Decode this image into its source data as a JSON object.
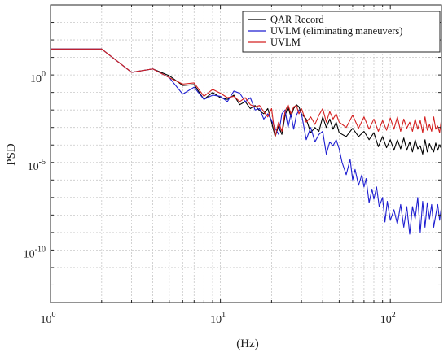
{
  "chart_data": {
    "type": "line",
    "xlabel": "(Hz)",
    "ylabel": "PSD",
    "xscale": "log",
    "yscale": "log",
    "xlim": [
      1,
      200
    ],
    "ylim": [
      1e-13,
      10000.0
    ],
    "grid": true,
    "legend_position": "top-right",
    "x_ticks": [
      {
        "value": 1,
        "base": "10",
        "exp": "0"
      },
      {
        "value": 10,
        "base": "10",
        "exp": "1"
      },
      {
        "value": 100,
        "base": "10",
        "exp": "2"
      }
    ],
    "y_ticks": [
      {
        "value": 1,
        "base": "10",
        "exp": "0"
      },
      {
        "value": 1e-05,
        "base": "10",
        "exp": "-5"
      },
      {
        "value": 1e-10,
        "base": "10",
        "exp": "-10"
      }
    ],
    "series": [
      {
        "name": "QAR Record",
        "color": "#000000",
        "x": [
          1,
          2,
          3,
          4,
          5,
          6,
          7,
          8,
          9,
          10,
          11,
          12,
          13,
          14,
          15,
          16,
          17,
          18,
          19,
          20,
          21,
          22,
          23,
          24,
          25,
          26,
          27,
          28,
          29,
          30,
          32,
          34,
          36,
          38,
          40,
          42,
          44,
          46,
          48,
          50,
          55,
          60,
          65,
          70,
          75,
          80,
          85,
          90,
          95,
          100,
          105,
          110,
          115,
          120,
          125,
          130,
          135,
          140,
          145,
          150,
          155,
          160,
          165,
          170,
          175,
          180,
          185,
          190,
          195,
          200
        ],
        "y": [
          30,
          30,
          1.4,
          2.2,
          0.9,
          0.25,
          0.28,
          0.04,
          0.1,
          0.05,
          0.04,
          0.07,
          0.02,
          0.03,
          0.012,
          0.018,
          0.009,
          0.006,
          0.012,
          0.002,
          0.0003,
          0.0012,
          0.0004,
          0.0045,
          0.015,
          0.004,
          0.012,
          0.02,
          0.015,
          0.006,
          0.003,
          0.0005,
          0.001,
          0.0006,
          0.004,
          0.001,
          0.003,
          0.0008,
          0.002,
          0.0005,
          0.0003,
          0.0009,
          0.0003,
          0.0006,
          0.0002,
          0.0005,
          8e-05,
          0.0003,
          7e-05,
          0.0002,
          5e-05,
          0.0002,
          6e-05,
          0.00025,
          5e-05,
          0.00015,
          4e-05,
          0.0002,
          6e-05,
          9e-05,
          3e-05,
          0.0002,
          4e-05,
          0.00012,
          6e-05,
          4e-05,
          0.00013,
          5e-05,
          0.0001,
          6e-05
        ]
      },
      {
        "name": "UVLM (eliminating maneuvers)",
        "color": "#1f1fd1",
        "x": [
          1,
          2,
          3,
          4,
          5,
          6,
          7,
          8,
          9,
          10,
          11,
          12,
          13,
          14,
          15,
          16,
          17,
          18,
          19,
          20,
          21,
          22,
          23,
          24,
          25,
          26,
          27,
          28,
          29,
          30,
          32,
          34,
          36,
          38,
          40,
          42,
          44,
          46,
          48,
          50,
          52,
          55,
          58,
          60,
          62,
          65,
          68,
          70,
          72,
          75,
          78,
          80,
          83,
          86,
          90,
          93,
          96,
          100,
          105,
          110,
          115,
          120,
          125,
          130,
          135,
          140,
          145,
          150,
          155,
          160,
          165,
          170,
          175,
          180,
          185,
          190,
          195,
          200
        ],
        "y": [
          30,
          30,
          1.4,
          2.2,
          0.7,
          0.08,
          0.2,
          0.04,
          0.07,
          0.06,
          0.03,
          0.12,
          0.09,
          0.03,
          0.05,
          0.01,
          0.012,
          0.003,
          0.006,
          0.0025,
          0.0009,
          0.0004,
          0.006,
          0.01,
          0.001,
          0.006,
          0.0008,
          0.005,
          0.01,
          0.006,
          0.0002,
          0.001,
          0.00015,
          0.0004,
          0.0006,
          3e-05,
          0.00015,
          9e-05,
          0.0002,
          6e-05,
          1e-05,
          2e-06,
          1.5e-05,
          1e-06,
          4e-06,
          5e-07,
          2e-06,
          4e-07,
          1.2e-06,
          5e-08,
          3e-07,
          8e-08,
          4e-07,
          3e-08,
          1e-07,
          4e-09,
          6e-08,
          5e-09,
          2e-08,
          3e-09,
          4e-08,
          2e-09,
          3e-08,
          8e-10,
          3e-08,
          6e-09,
          1e-07,
          1e-09,
          6e-08,
          2e-09,
          5e-08,
          6e-09,
          4e-08,
          2e-09,
          1e-08,
          4e-08,
          5e-09,
          3e-08
        ]
      },
      {
        "name": "UVLM",
        "color": "#d42020",
        "x": [
          1,
          2,
          3,
          4,
          5,
          6,
          7,
          8,
          9,
          10,
          11,
          12,
          13,
          14,
          15,
          16,
          17,
          18,
          19,
          20,
          21,
          22,
          23,
          24,
          25,
          26,
          27,
          28,
          29,
          30,
          32,
          34,
          36,
          38,
          40,
          42,
          44,
          46,
          48,
          50,
          55,
          60,
          65,
          70,
          75,
          80,
          85,
          90,
          95,
          100,
          105,
          110,
          115,
          120,
          125,
          130,
          135,
          140,
          145,
          150,
          155,
          160,
          165,
          170,
          175,
          180,
          185,
          190,
          195,
          200
        ],
        "y": [
          30,
          30,
          1.4,
          2.2,
          0.7,
          0.3,
          0.35,
          0.06,
          0.15,
          0.09,
          0.05,
          0.06,
          0.03,
          0.05,
          0.02,
          0.015,
          0.018,
          0.008,
          0.004,
          0.012,
          0.0003,
          0.002,
          0.0006,
          0.008,
          0.02,
          0.006,
          0.015,
          0.018,
          0.006,
          0.012,
          0.002,
          0.004,
          0.0015,
          0.005,
          0.012,
          0.002,
          0.008,
          0.003,
          0.006,
          0.002,
          0.001,
          0.005,
          0.0009,
          0.004,
          0.0008,
          0.003,
          0.0006,
          0.0025,
          0.0007,
          0.0035,
          0.0008,
          0.004,
          0.0006,
          0.003,
          0.0009,
          0.002,
          0.0006,
          0.003,
          0.0008,
          0.0025,
          0.0005,
          0.004,
          0.0007,
          0.0015,
          0.0006,
          0.004,
          0.0008,
          0.0012,
          0.0005,
          0.003
        ]
      }
    ]
  }
}
